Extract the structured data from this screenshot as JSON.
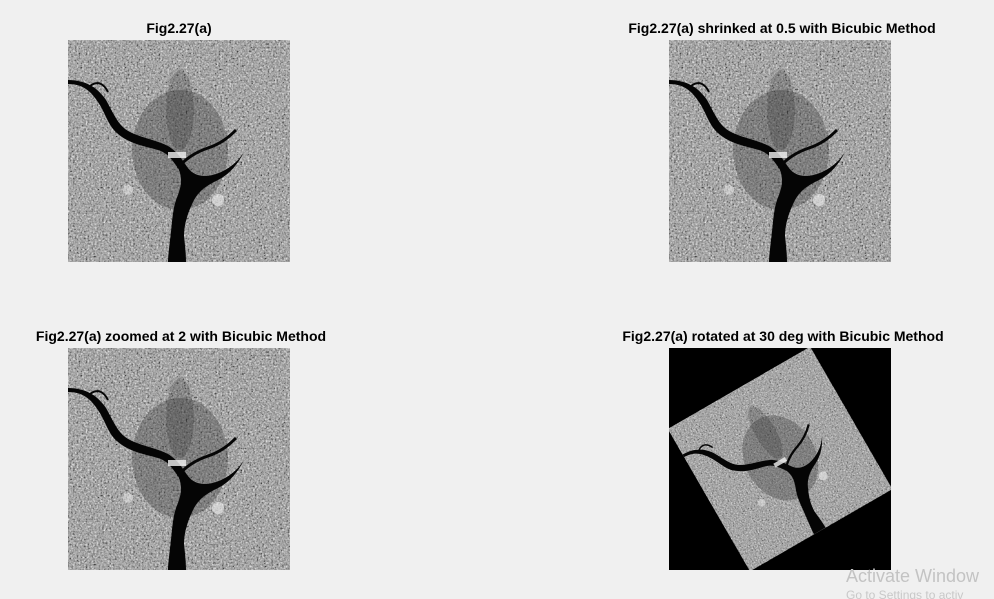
{
  "figure": {
    "background": "#f0f0f0",
    "subplots": [
      {
        "title": "Fig2.27(a)",
        "image": "satellite-grayscale-image",
        "rotation_deg": 0
      },
      {
        "title": "Fig2.27(a) shrinked at 0.5 with Bicubic Method",
        "image": "satellite-grayscale-image",
        "rotation_deg": 0
      },
      {
        "title": "Fig2.27(a) zoomed at 2 with Bicubic Method",
        "image": "satellite-grayscale-image",
        "rotation_deg": 0
      },
      {
        "title": "Fig2.27(a) rotated at 30 deg with Bicubic Method",
        "image": "satellite-grayscale-image",
        "rotation_deg": 30
      }
    ]
  },
  "watermark": {
    "line1": "Activate Window",
    "line2": "Go to Settings to activ"
  }
}
